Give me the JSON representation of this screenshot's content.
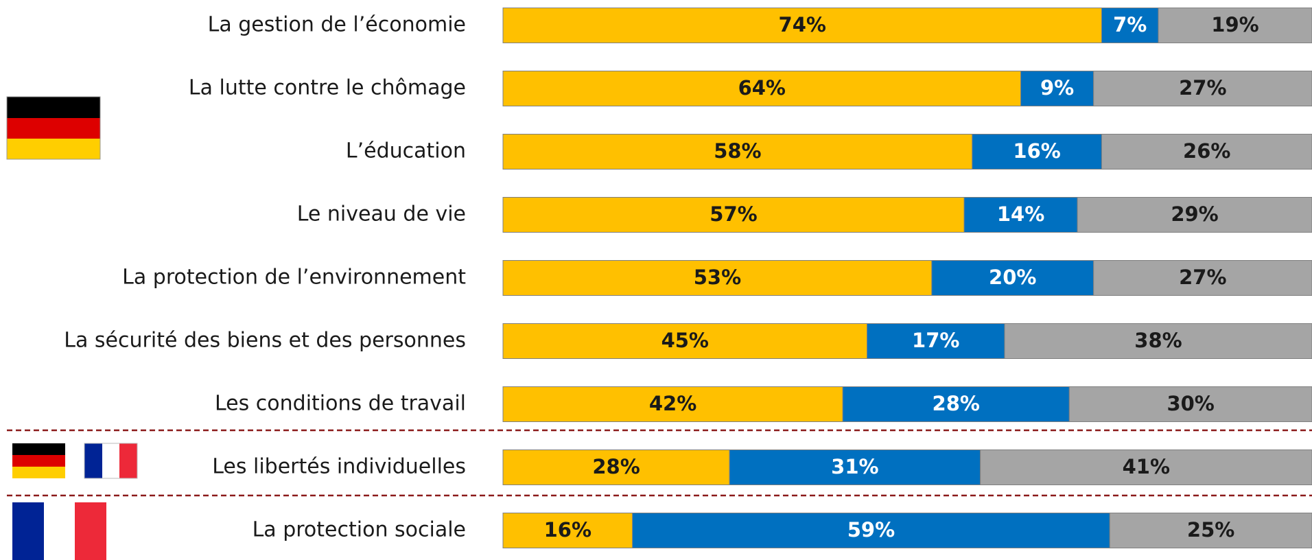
{
  "chart_data": {
    "type": "stacked-bar-horizontal",
    "categories": [
      "La gestion de l’économie",
      "La lutte contre le chômage",
      "L’éducation",
      "Le niveau de vie",
      "La protection de l’environnement",
      "La sécurité des biens et des personnes",
      "Les conditions de travail",
      "Les libertés individuelles",
      "La protection sociale"
    ],
    "series": [
      {
        "color": "#FFC000",
        "label_color": "#1a1a1a",
        "values": [
          74,
          64,
          58,
          57,
          53,
          45,
          42,
          28,
          16
        ],
        "value_labels": [
          "74%",
          "64%",
          "58%",
          "57%",
          "53%",
          "45%",
          "42%",
          "28%",
          "16%"
        ]
      },
      {
        "color": "#0070C0",
        "label_color": "#ffffff",
        "values": [
          7,
          9,
          16,
          14,
          20,
          17,
          28,
          31,
          59
        ],
        "value_labels": [
          "7%",
          "9%",
          "16%",
          "14%",
          "20%",
          "17%",
          "28%",
          "31%",
          "59%"
        ]
      },
      {
        "color": "#A5A5A5",
        "label_color": "#1a1a1a",
        "values": [
          19,
          27,
          26,
          29,
          27,
          38,
          30,
          41,
          25
        ],
        "value_labels": [
          "19%",
          "27%",
          "26%",
          "29%",
          "27%",
          "38%",
          "30%",
          "41%",
          "25%"
        ]
      }
    ],
    "xlim": [
      0,
      100
    ]
  }
}
